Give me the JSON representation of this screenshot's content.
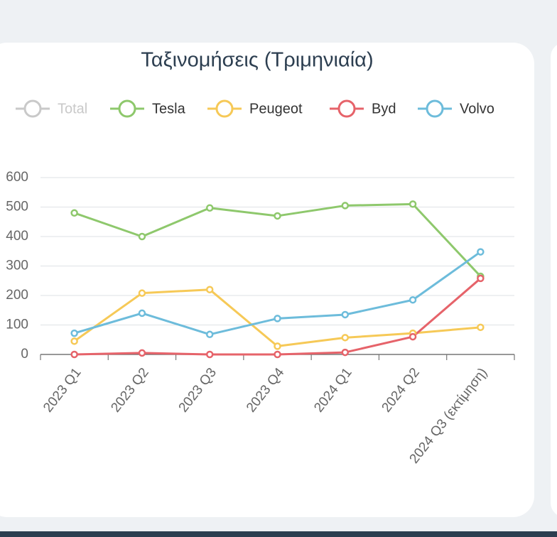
{
  "chart_data": {
    "type": "line",
    "title": "Ταξινομήσεις (Τριμηνιαία)",
    "categories": [
      "2023 Q1",
      "2023 Q2",
      "2023 Q3",
      "2023 Q4",
      "2024 Q1",
      "2024 Q2",
      "2024 Q3 (εκτίμηση)"
    ],
    "series": [
      {
        "name": "Total",
        "color": "#c9c9c9",
        "hidden": true
      },
      {
        "name": "Tesla",
        "color": "#8ec86c",
        "values": [
          480,
          400,
          497,
          470,
          505,
          510,
          265
        ]
      },
      {
        "name": "Peugeot",
        "color": "#f6c957",
        "values": [
          45,
          208,
          220,
          28,
          57,
          72,
          92
        ]
      },
      {
        "name": "Byd",
        "color": "#e6636a",
        "values": [
          0,
          5,
          0,
          0,
          7,
          60,
          258
        ]
      },
      {
        "name": "Volvo",
        "color": "#6dbcdb",
        "values": [
          72,
          140,
          68,
          122,
          135,
          185,
          348
        ]
      }
    ],
    "ylim": [
      0,
      600
    ],
    "yticks": [
      0,
      100,
      200,
      300,
      400,
      500,
      600
    ],
    "grid": true,
    "legend": "top"
  }
}
